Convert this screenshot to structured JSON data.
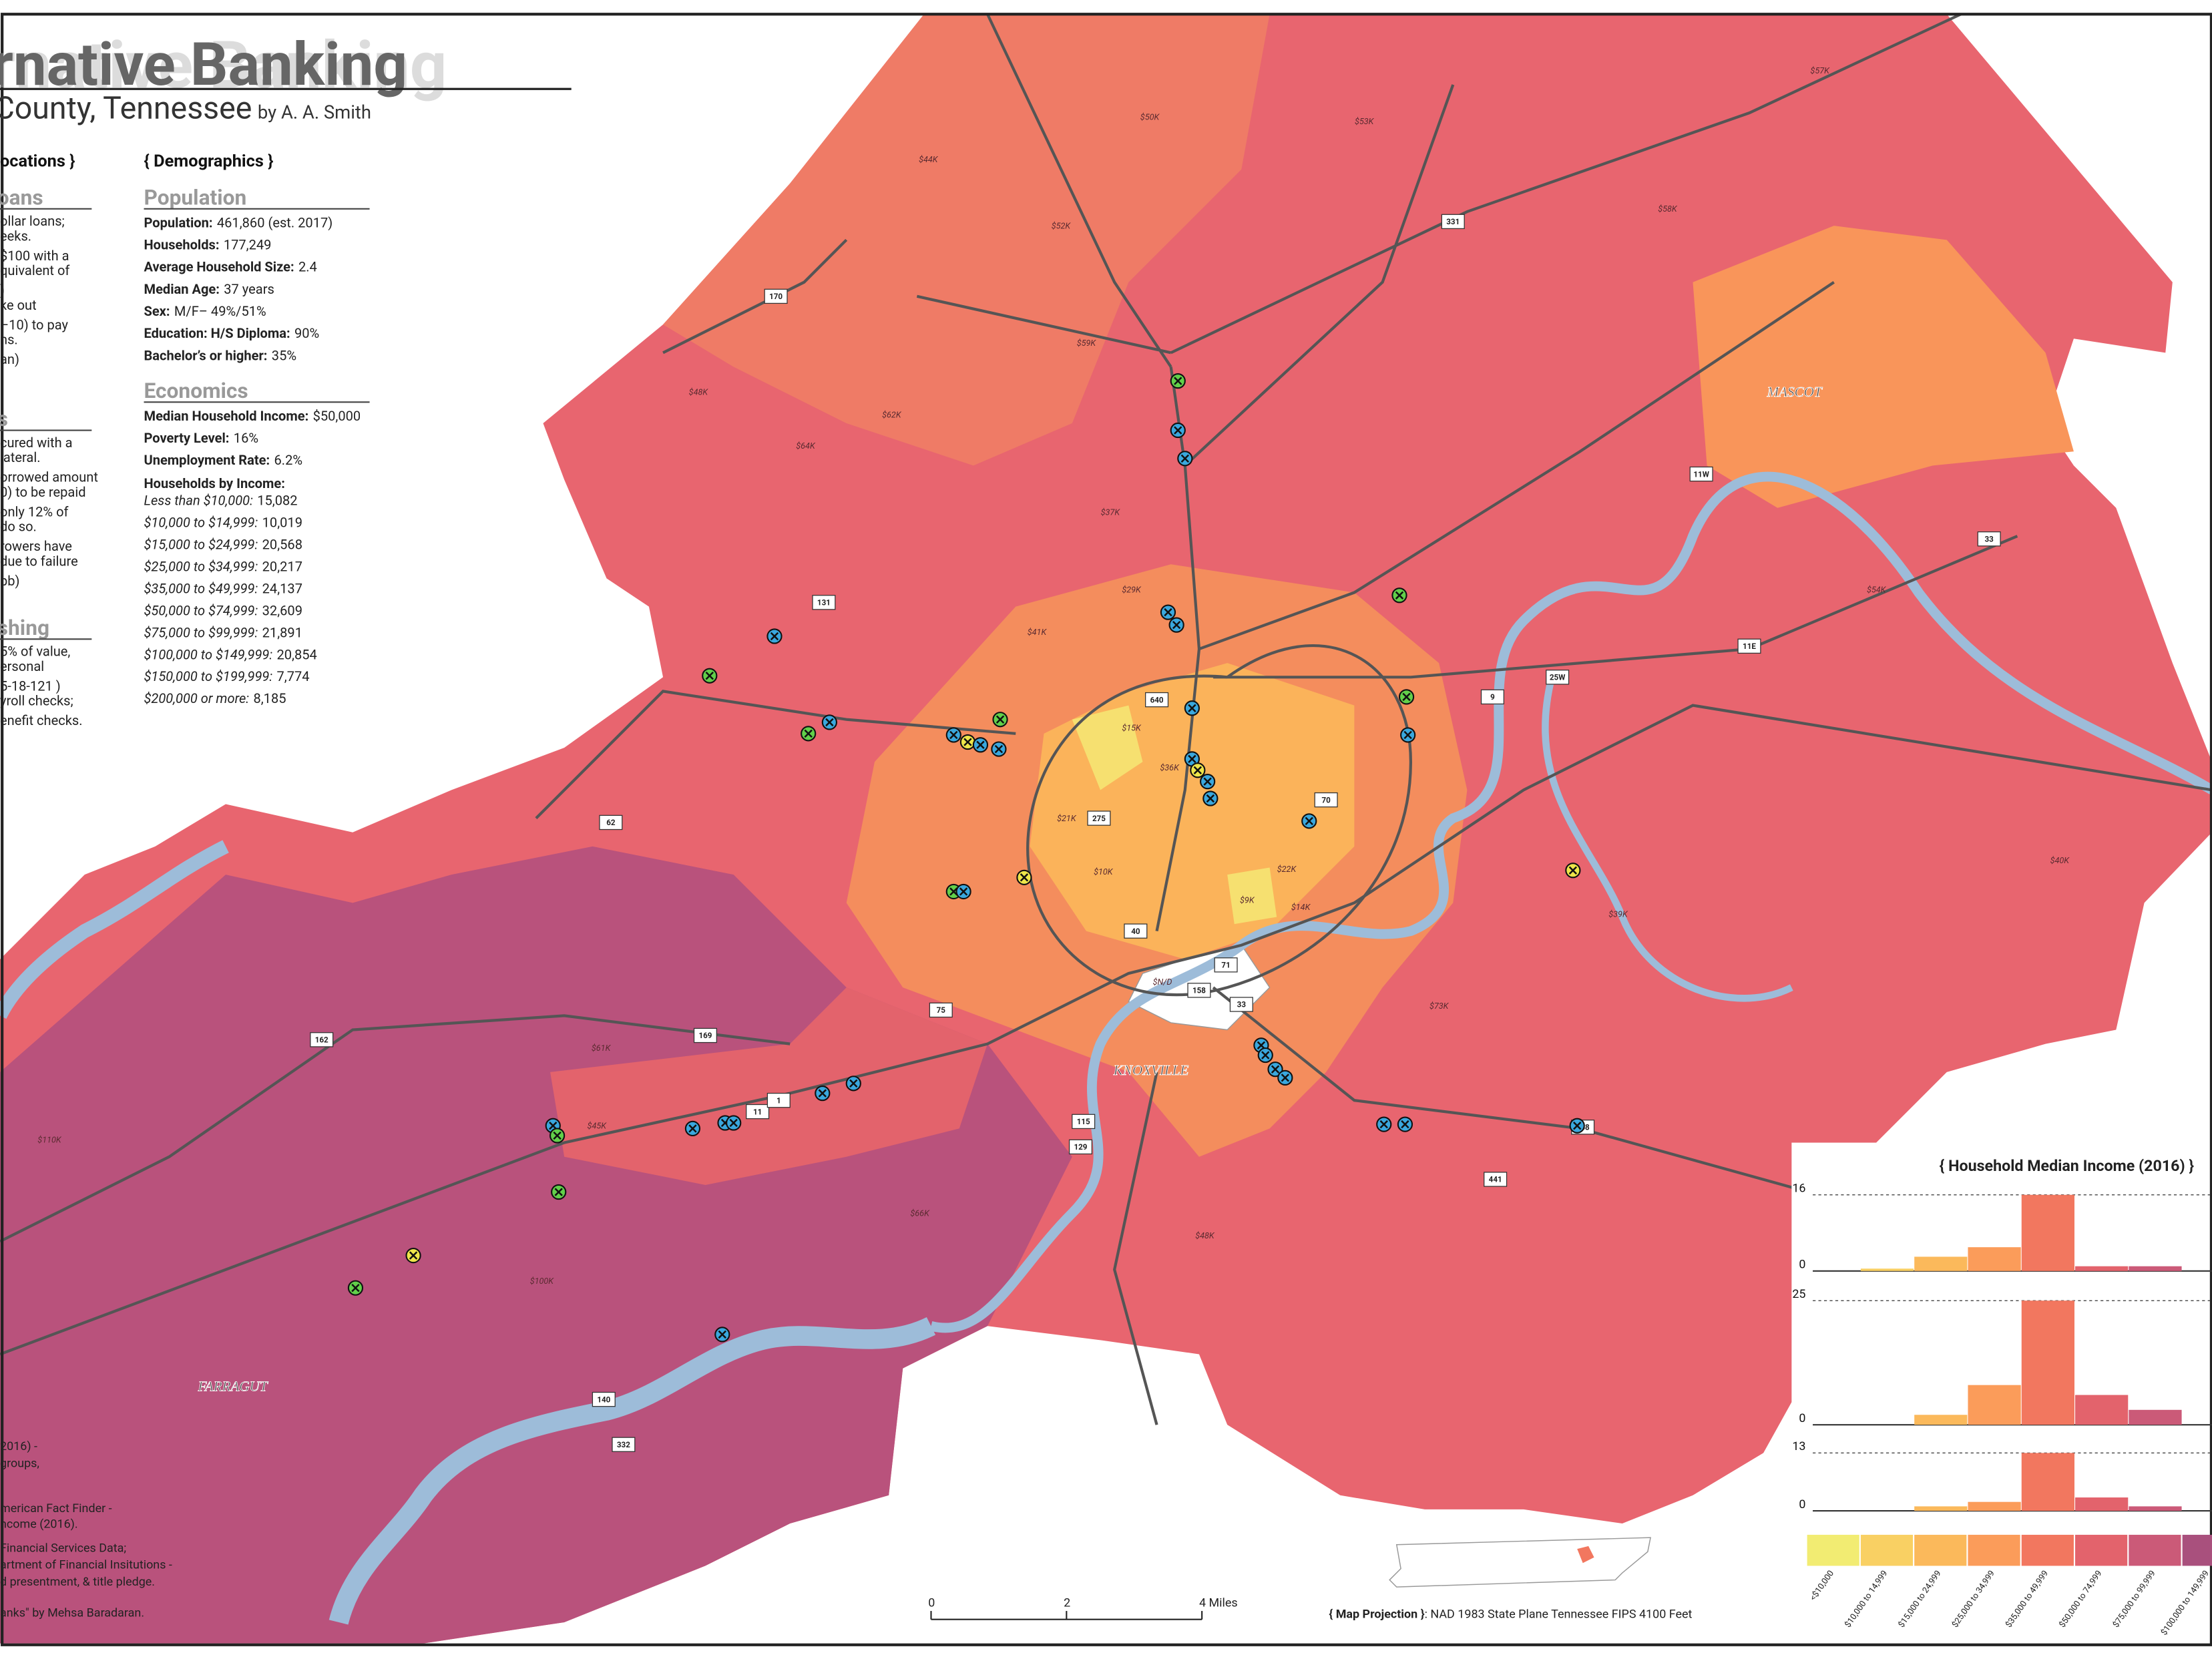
{
  "header": {
    "title": "rnative Banking",
    "subtitle": "County, Tennessee",
    "byline": "by A. A. Smith"
  },
  "left_panel": {
    "heading": "ocations }",
    "sections": [
      {
        "title": "oans",
        "lines": [
          "ollar loans;",
          "eeks.",
          "$100 with a",
          "quivalent of",
          ")",
          "ke out",
          "–10) to pay",
          "ns.",
          "an)"
        ]
      },
      {
        "title": "s",
        "lines": [
          "cured with a",
          "lateral.",
          "orrowed amount",
          "0) to be repaid",
          "only 12% of",
          "do so.",
          "rowers have",
          "due to failure",
          "pb)"
        ]
      },
      {
        "title": "shing",
        "lines": [
          "5% of value,",
          "ersonal",
          "5-18-121 )",
          "yroll checks;",
          "enefit checks."
        ]
      }
    ]
  },
  "demographics": {
    "heading": "{ Demographics }",
    "population": {
      "title": "Population",
      "items": [
        {
          "label": "Population:",
          "value": "461,860 (est. 2017)"
        },
        {
          "label": "Households:",
          "value": "177,249"
        },
        {
          "label": "Average Household Size:",
          "value": "2.4"
        },
        {
          "label": "Median Age:",
          "value": "37 years"
        },
        {
          "label": "Sex:",
          "value": "M/F– 49%/51%"
        },
        {
          "label": "Education: H/S Diploma:",
          "value": "90%"
        },
        {
          "label": "Bachelor’s or higher:",
          "value": "35%"
        }
      ]
    },
    "economics": {
      "title": "Economics",
      "items": [
        {
          "label": "Median Household Income:",
          "value": "$50,000"
        },
        {
          "label": "Poverty Level:",
          "value": "16%"
        },
        {
          "label": "Unemployment Rate:",
          "value": "6.2%"
        }
      ]
    },
    "income_heading": "Households by Income:",
    "income": [
      {
        "label": "Less than $10,000:",
        "value": "15,082"
      },
      {
        "label": "$10,000 to $14,999:",
        "value": "10,019"
      },
      {
        "label": "$15,000 to $24,999:",
        "value": "20,568"
      },
      {
        "label": "$25,000 to $34,999:",
        "value": "20,217"
      },
      {
        "label": "$35,000 to $49,999:",
        "value": "24,137"
      },
      {
        "label": "$50,000 to $74,999:",
        "value": "32,609"
      },
      {
        "label": "$75,000 to $99,999:",
        "value": "21,891"
      },
      {
        "label": "$100,000 to $149,999:",
        "value": "20,854"
      },
      {
        "label": "$150,000 to $199,999:",
        "value": "7,774"
      },
      {
        "label": "$200,000 or more:",
        "value": "8,185"
      }
    ]
  },
  "sources": [
    "2016) -",
    "groups,",
    "merican Fact Finder -",
    "ncome (2016).",
    "Financial Services Data;",
    "artment of Financial Insitutions -",
    "d presentment, & title pledge.",
    "anks\" by Mehsa Baradaran."
  ],
  "place_labels": [
    "MASCOT",
    "KNOXVILLE",
    "FARRAGUT"
  ],
  "road_shields": [
    "170",
    "331",
    "131",
    "62",
    "162",
    "169",
    "11",
    "1",
    "115",
    "129",
    "332",
    "140",
    "75",
    "40",
    "640",
    "275",
    "70",
    "71",
    "33",
    "158",
    "168",
    "441",
    "9",
    "25W",
    "11E",
    "11W",
    "33"
  ],
  "tract_labels": [
    "$57K",
    "$44K",
    "$52K",
    "$50K",
    "$53K",
    "$59K",
    "$62K",
    "$48K",
    "$64K",
    "$37K",
    "$41K",
    "$29K",
    "$15K",
    "$21K",
    "$10K",
    "$9K",
    "$14K",
    "$22K",
    "$36K",
    "$45K",
    "$61K",
    "$54K",
    "$40K",
    "$39K",
    "$73K",
    "$66K",
    "$110K",
    "$100K",
    "$48K",
    "$58K",
    "$N/D"
  ],
  "histograms": {
    "title": "{ Household Median Income (2016) }",
    "categories": [
      "<$10,000",
      "$10,000 to 14,999",
      "$15,000 to 24,999",
      "$25,000 to 34,999",
      "$35,000 to 49,999",
      "$50,000 to 74,999",
      "$75,000 to 99,999",
      "$100,000 to 149,999"
    ],
    "colors": [
      "#f2ec72",
      "#f9d063",
      "#fbb95b",
      "#fb9c5a",
      "#f2775f",
      "#e3636c",
      "#cb5a78",
      "#a9507d"
    ],
    "charts": [
      {
        "values": [
          0,
          0.5,
          3,
          5,
          16,
          1,
          1,
          0
        ],
        "ylim": [
          0,
          16
        ],
        "yticks": [
          0,
          16
        ]
      },
      {
        "values": [
          0,
          0,
          2,
          8,
          25,
          6,
          3,
          0
        ],
        "ylim": [
          0,
          25
        ],
        "yticks": [
          0,
          25
        ]
      },
      {
        "values": [
          0,
          0,
          1,
          2,
          13,
          3,
          1,
          0
        ],
        "ylim": [
          0,
          13
        ],
        "yticks": [
          0,
          13
        ]
      }
    ]
  },
  "scale_bar": {
    "ticks": [
      0,
      2,
      {
        "value": 4,
        "label": "4 Miles"
      }
    ]
  },
  "projection": {
    "label": "{ Map Projection }",
    "text": ": NAD 1983 State Plane Tennessee FIPS 4100 Feet"
  }
}
